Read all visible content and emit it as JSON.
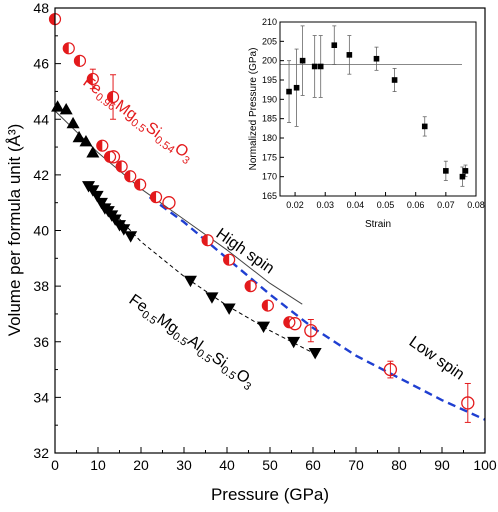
{
  "chart_data": [
    {
      "type": "scatter",
      "xlabel": "Pressure (GPa)",
      "ylabel": "Volume per formula unit (Å³)",
      "xlim": [
        0,
        100
      ],
      "ylim": [
        32,
        48
      ],
      "xticks": [
        0,
        5,
        10,
        15,
        20,
        25,
        30,
        35,
        40,
        45,
        50,
        55,
        60,
        65,
        70,
        75,
        80,
        85,
        90,
        95,
        100
      ],
      "yticks": [
        32,
        34,
        36,
        38,
        40,
        42,
        44,
        46,
        48
      ],
      "grid": false,
      "legend": "none",
      "colors": {
        "red": "#e31a1c",
        "black": "#000000",
        "blue": "#1f3fd1",
        "fit": "#444444"
      },
      "annotations": {
        "fe096_label": {
          "main": "Fe",
          "s1": "0.96",
          "m1": "Mg",
          "s2": "0.5",
          "m2": "Si",
          "s3": "0.54",
          "m3": "O",
          "s4": "3"
        },
        "al_label": {
          "main": "Fe",
          "s1": "0.5",
          "m1": "Mg",
          "s2": "0.5",
          "m2": "Al",
          "s3": "0.5",
          "m3": "Si",
          "s4": "0.5",
          "m4": "O",
          "s5": "3"
        },
        "high_spin": "High spin",
        "low_spin": "Low spin"
      },
      "series": [
        {
          "marker": "half-filled-circle",
          "color": "red",
          "points": [
            {
              "x": 0,
              "y": 47.6
            },
            {
              "x": 3.2,
              "y": 46.55
            },
            {
              "x": 5.8,
              "y": 46.1
            },
            {
              "x": 8.8,
              "y": 45.45,
              "err": 0.35
            },
            {
              "x": 13.5,
              "y": 44.8,
              "err": 0.8
            },
            {
              "x": 11,
              "y": 43.05
            },
            {
              "x": 12.8,
              "y": 42.65
            },
            {
              "x": 15.5,
              "y": 42.3
            },
            {
              "x": 17.5,
              "y": 41.95
            },
            {
              "x": 19.8,
              "y": 41.65
            },
            {
              "x": 23.5,
              "y": 41.2
            },
            {
              "x": 35.5,
              "y": 39.65
            },
            {
              "x": 40.5,
              "y": 38.95
            },
            {
              "x": 45.5,
              "y": 38.0
            },
            {
              "x": 49.5,
              "y": 37.3
            },
            {
              "x": 54.5,
              "y": 36.7
            }
          ]
        },
        {
          "marker": "open-circle",
          "color": "red",
          "points": [
            {
              "x": 13.6,
              "y": 42.65
            },
            {
              "x": 26.5,
              "y": 41.0
            },
            {
              "x": 55.8,
              "y": 36.65
            },
            {
              "x": 59.5,
              "y": 36.4,
              "err": 0.4
            },
            {
              "x": 78,
              "y": 35.0,
              "err": 0.3
            },
            {
              "x": 96,
              "y": 33.8,
              "err": 0.7
            }
          ]
        },
        {
          "marker": "filled-triangle-up",
          "color": "black",
          "points": [
            {
              "x": 0.6,
              "y": 44.45
            },
            {
              "x": 2.6,
              "y": 44.35
            },
            {
              "x": 4.2,
              "y": 43.85
            },
            {
              "x": 5.6,
              "y": 43.35
            },
            {
              "x": 7.2,
              "y": 43.2
            },
            {
              "x": 8.8,
              "y": 42.8
            }
          ]
        },
        {
          "marker": "filled-triangle-down",
          "color": "black",
          "points": [
            {
              "x": 7.8,
              "y": 41.6
            },
            {
              "x": 8.8,
              "y": 41.45
            },
            {
              "x": 9.8,
              "y": 41.25
            },
            {
              "x": 10.8,
              "y": 41.0
            },
            {
              "x": 11.6,
              "y": 40.8
            },
            {
              "x": 12.4,
              "y": 40.7
            },
            {
              "x": 13.2,
              "y": 40.55
            },
            {
              "x": 14.0,
              "y": 40.4
            },
            {
              "x": 15.0,
              "y": 40.2
            },
            {
              "x": 16.0,
              "y": 40.05
            },
            {
              "x": 17.6,
              "y": 39.8
            },
            {
              "x": 31.5,
              "y": 38.2
            },
            {
              "x": 36.5,
              "y": 37.6
            },
            {
              "x": 40.5,
              "y": 37.2
            },
            {
              "x": 48.5,
              "y": 36.55
            },
            {
              "x": 55.5,
              "y": 36.0
            },
            {
              "x": 60.5,
              "y": 35.6
            }
          ]
        }
      ],
      "fits": [
        {
          "style": "solid",
          "color": "black",
          "x": [
            0,
            10,
            20,
            30,
            40,
            50,
            57.5
          ],
          "y": [
            44.3,
            42.8,
            41.5,
            40.4,
            39.3,
            38.1,
            37.35
          ]
        },
        {
          "style": "dashed",
          "color": "black",
          "x": [
            8,
            20,
            30,
            40,
            50,
            60
          ],
          "y": [
            41.55,
            39.6,
            38.35,
            37.3,
            36.4,
            35.6
          ]
        },
        {
          "style": "dashed",
          "color": "blue",
          "x": [
            22,
            30,
            40,
            50,
            60,
            70,
            80,
            90,
            100
          ],
          "y": [
            41.2,
            40.3,
            39.0,
            37.7,
            36.5,
            35.5,
            34.7,
            33.9,
            33.2
          ]
        }
      ]
    },
    {
      "type": "scatter",
      "xlabel": "Strain",
      "ylabel": "Normalized Pressure (GPa)",
      "xlim": [
        0.015,
        0.08
      ],
      "ylim": [
        165,
        210
      ],
      "xticks": [
        0.02,
        0.03,
        0.04,
        0.05,
        0.06,
        0.07,
        0.08
      ],
      "xtick_labels": [
        "0.02",
        "0.03",
        "0.04",
        "0.05",
        "0.06",
        "0.07",
        "0.08"
      ],
      "yticks": [
        165,
        170,
        175,
        180,
        185,
        190,
        195,
        200,
        205,
        210
      ],
      "reference_line": 199,
      "points": [
        {
          "x": 0.018,
          "y": 192,
          "err": 8
        },
        {
          "x": 0.0205,
          "y": 193,
          "err": 10
        },
        {
          "x": 0.0225,
          "y": 200,
          "err": 9
        },
        {
          "x": 0.0265,
          "y": 198.5,
          "err": 8
        },
        {
          "x": 0.0285,
          "y": 198.5,
          "err": 8
        },
        {
          "x": 0.033,
          "y": 204,
          "err": 5
        },
        {
          "x": 0.038,
          "y": 201.5,
          "err": 5
        },
        {
          "x": 0.047,
          "y": 200.5,
          "err": 3
        },
        {
          "x": 0.053,
          "y": 195,
          "err": 3
        },
        {
          "x": 0.063,
          "y": 183,
          "err": 2.5
        },
        {
          "x": 0.07,
          "y": 171.5,
          "err": 2.5
        },
        {
          "x": 0.0755,
          "y": 170,
          "err": 2.5
        },
        {
          "x": 0.0765,
          "y": 171.5,
          "err": 1.5
        }
      ]
    }
  ]
}
